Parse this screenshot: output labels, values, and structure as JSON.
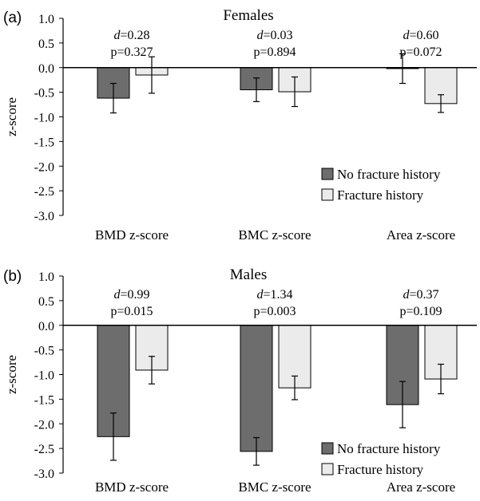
{
  "colors": {
    "no_fracture": "#6d6d6d",
    "fracture": "#ebebeb",
    "axis": "#000000"
  },
  "chart_data": [
    {
      "type": "bar",
      "panel_label": "(a)",
      "title": "Females",
      "ylabel": "z-score",
      "ylim": [
        -3.0,
        1.0
      ],
      "yticks": [
        "1.0",
        "0.5",
        "0.0",
        "-0.5",
        "-1.0",
        "-1.5",
        "-2.0",
        "-2.5",
        "-3.0"
      ],
      "ytick_values": [
        1.0,
        0.5,
        0.0,
        -0.5,
        -1.0,
        -1.5,
        -2.0,
        -2.5,
        -3.0
      ],
      "categories": [
        "BMD z-score",
        "BMC z-score",
        "Area z-score"
      ],
      "series": [
        {
          "name": "No fracture history",
          "values": [
            -0.62,
            -0.45,
            -0.02
          ],
          "error_low": [
            -0.92,
            -0.69,
            -0.32
          ],
          "error_high": [
            -0.32,
            -0.21,
            0.28
          ]
        },
        {
          "name": "Fracture history",
          "values": [
            -0.15,
            -0.49,
            -0.73
          ],
          "error_low": [
            -0.52,
            -0.79,
            -0.91
          ],
          "error_high": [
            0.22,
            -0.19,
            -0.55
          ]
        }
      ],
      "annotations": [
        {
          "d_label": "d",
          "d_value": "=0.28",
          "p_text": "p=0.327"
        },
        {
          "d_label": "d",
          "d_value": "=0.03",
          "p_text": "p=0.894"
        },
        {
          "d_label": "d",
          "d_value": "=0.60",
          "p_text": "p=0.072"
        }
      ],
      "legend": {
        "placement": "bottom-right",
        "entries": [
          "No fracture history",
          "Fracture history"
        ]
      }
    },
    {
      "type": "bar",
      "panel_label": "(b)",
      "title": "Males",
      "ylabel": "z-score",
      "ylim": [
        -3.0,
        1.0
      ],
      "yticks": [
        "1.0",
        "0.5",
        "0.0",
        "-0.5",
        "-1.0",
        "-1.5",
        "-2.0",
        "-2.5",
        "-3.0"
      ],
      "ytick_values": [
        1.0,
        0.5,
        0.0,
        -0.5,
        -1.0,
        -1.5,
        -2.0,
        -2.5,
        -3.0
      ],
      "categories": [
        "BMD z-score",
        "BMC z-score",
        "Area z-score"
      ],
      "series": [
        {
          "name": "No fracture history",
          "values": [
            -2.26,
            -2.56,
            -1.61
          ],
          "error_low": [
            -2.74,
            -2.84,
            -2.08
          ],
          "error_high": [
            -1.78,
            -2.28,
            -1.14
          ]
        },
        {
          "name": "Fracture history",
          "values": [
            -0.91,
            -1.27,
            -1.09
          ],
          "error_low": [
            -1.19,
            -1.51,
            -1.39
          ],
          "error_high": [
            -0.63,
            -1.03,
            -0.79
          ]
        }
      ],
      "annotations": [
        {
          "d_label": "d",
          "d_value": "=0.99",
          "p_text": "p=0.015"
        },
        {
          "d_label": "d",
          "d_value": "=1.34",
          "p_text": "p=0.003"
        },
        {
          "d_label": "d",
          "d_value": "=0.37",
          "p_text": "p=0.109"
        }
      ],
      "legend": {
        "placement": "bottom-right",
        "entries": [
          "No fracture history",
          "Fracture history"
        ]
      }
    }
  ]
}
